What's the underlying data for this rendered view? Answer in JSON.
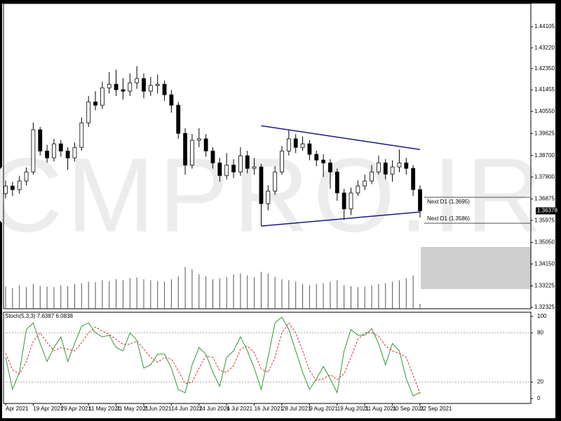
{
  "chart_data": {
    "type": "candlestick",
    "watermark": "CMPRO.IR",
    "ylim": [
      1.3227,
      1.4508
    ],
    "yticks": [
      {
        "value": 1.44105,
        "label": "1.44105"
      },
      {
        "value": 1.4322,
        "label": "1.43220"
      },
      {
        "value": 1.4235,
        "label": "1.42350"
      },
      {
        "value": 1.41455,
        "label": "1.41455"
      },
      {
        "value": 1.4055,
        "label": "1.40550"
      },
      {
        "value": 1.39625,
        "label": "1.39625"
      },
      {
        "value": 1.387,
        "label": "1.38700"
      },
      {
        "value": 1.378,
        "label": "1.37800"
      },
      {
        "value": 1.36875,
        "label": "1.36875"
      },
      {
        "value": 1.35975,
        "label": "1.35975"
      },
      {
        "value": 1.3505,
        "label": "1.35050"
      },
      {
        "value": 1.3415,
        "label": "1.34150"
      },
      {
        "value": 1.33225,
        "label": "1.33225"
      },
      {
        "value": 1.32325,
        "label": "1.32325"
      }
    ],
    "current_price": 1.36378,
    "categories": [
      "Apr 2021",
      null,
      null,
      null,
      "19 Apr 2021",
      null,
      null,
      null,
      "29 Apr 2021",
      null,
      null,
      null,
      "11 May 2021",
      null,
      null,
      null,
      "21 May 2021",
      null,
      null,
      null,
      "2 Jun 2021",
      null,
      null,
      null,
      "14 Jun 2021",
      null,
      null,
      null,
      "24 Jun 2021",
      null,
      null,
      null,
      "6 Jul 2021",
      null,
      null,
      null,
      "16 Jul 2021",
      null,
      null,
      null,
      "28 Jul 2021",
      null,
      null,
      null,
      "9 Aug 2021",
      null,
      null,
      null,
      "19 Aug 2021",
      null,
      null,
      null,
      "31 Aug 2021",
      null,
      null,
      null,
      "10 Sep 2021",
      null,
      null,
      null,
      "22 Sep 2021"
    ],
    "ohlc": [
      [
        1.371,
        1.3765,
        1.369,
        1.3742
      ],
      [
        1.3742,
        1.376,
        1.37,
        1.3727
      ],
      [
        1.3727,
        1.3785,
        1.371,
        1.3763
      ],
      [
        1.3763,
        1.382,
        1.3745,
        1.3801
      ],
      [
        1.3801,
        1.4008,
        1.379,
        1.3978
      ],
      [
        1.3978,
        1.399,
        1.387,
        1.3889
      ],
      [
        1.3889,
        1.3915,
        1.384,
        1.386
      ],
      [
        1.386,
        1.394,
        1.3845,
        1.3919
      ],
      [
        1.3919,
        1.3935,
        1.3865,
        1.3889
      ],
      [
        1.3889,
        1.3905,
        1.381,
        1.386
      ],
      [
        1.386,
        1.3925,
        1.3845,
        1.3904
      ],
      [
        1.3904,
        1.403,
        1.389,
        1.4007
      ],
      [
        1.4007,
        1.412,
        1.399,
        1.4095
      ],
      [
        1.4095,
        1.414,
        1.406,
        1.4081
      ],
      [
        1.4081,
        1.418,
        1.4065,
        1.4154
      ],
      [
        1.4154,
        1.422,
        1.413,
        1.4169
      ],
      [
        1.4169,
        1.423,
        1.412,
        1.4146
      ],
      [
        1.4146,
        1.4195,
        1.4105,
        1.414
      ],
      [
        1.414,
        1.4215,
        1.412,
        1.4175
      ],
      [
        1.4175,
        1.4245,
        1.415,
        1.4193
      ],
      [
        1.4193,
        1.4215,
        1.411,
        1.414
      ],
      [
        1.414,
        1.42,
        1.412,
        1.4164
      ],
      [
        1.4164,
        1.421,
        1.413,
        1.4169
      ],
      [
        1.4169,
        1.4185,
        1.41,
        1.4125
      ],
      [
        1.4125,
        1.4145,
        1.405,
        1.4081
      ],
      [
        1.4081,
        1.4095,
        1.394,
        1.3963
      ],
      [
        1.3963,
        1.3985,
        1.379,
        1.383
      ],
      [
        1.383,
        1.396,
        1.3815,
        1.3934
      ],
      [
        1.3934,
        1.3985,
        1.3905,
        1.394
      ],
      [
        1.394,
        1.396,
        1.3865,
        1.3889
      ],
      [
        1.3889,
        1.3905,
        1.3815,
        1.3839
      ],
      [
        1.3839,
        1.386,
        1.376,
        1.3786
      ],
      [
        1.3786,
        1.388,
        1.377,
        1.383
      ],
      [
        1.383,
        1.3855,
        1.3775,
        1.3801
      ],
      [
        1.3801,
        1.3905,
        1.3785,
        1.3869
      ],
      [
        1.3869,
        1.389,
        1.3795,
        1.3816
      ],
      [
        1.3816,
        1.386,
        1.379,
        1.3822
      ],
      [
        1.3822,
        1.3835,
        1.3575,
        1.3668
      ],
      [
        1.3668,
        1.3745,
        1.364,
        1.3721
      ],
      [
        1.3721,
        1.3825,
        1.3705,
        1.3801
      ],
      [
        1.3801,
        1.391,
        1.379,
        1.3889
      ],
      [
        1.3889,
        1.3975,
        1.387,
        1.394
      ],
      [
        1.394,
        1.396,
        1.388,
        1.3904
      ],
      [
        1.3904,
        1.395,
        1.389,
        1.3919
      ],
      [
        1.3919,
        1.3935,
        1.385,
        1.3875
      ],
      [
        1.3875,
        1.389,
        1.3825,
        1.3851
      ],
      [
        1.3851,
        1.3875,
        1.378,
        1.3839
      ],
      [
        1.3839,
        1.3855,
        1.373,
        1.3801
      ],
      [
        1.3801,
        1.3815,
        1.368,
        1.3713
      ],
      [
        1.3713,
        1.373,
        1.36,
        1.3646
      ],
      [
        1.3646,
        1.3735,
        1.362,
        1.3713
      ],
      [
        1.3713,
        1.3765,
        1.37,
        1.3742
      ],
      [
        1.3742,
        1.379,
        1.3725,
        1.3763
      ],
      [
        1.3763,
        1.383,
        1.375,
        1.3801
      ],
      [
        1.3801,
        1.387,
        1.379,
        1.3839
      ],
      [
        1.3839,
        1.3855,
        1.377,
        1.3792
      ],
      [
        1.3792,
        1.385,
        1.376,
        1.3822
      ],
      [
        1.3822,
        1.3895,
        1.38,
        1.3839
      ],
      [
        1.3839,
        1.386,
        1.379,
        1.3816
      ],
      [
        1.3816,
        1.383,
        1.37,
        1.3727
      ],
      [
        1.3727,
        1.3745,
        1.361,
        1.3638
      ]
    ],
    "vlim": [
      0,
      100
    ],
    "volume": [
      45,
      42,
      48,
      44,
      50,
      46,
      45,
      44,
      48,
      46,
      50,
      52,
      55,
      54,
      58,
      56,
      60,
      58,
      62,
      64,
      60,
      58,
      56,
      55,
      60,
      66,
      85,
      80,
      70,
      66,
      60,
      62,
      65,
      70,
      72,
      68,
      64,
      75,
      72,
      65,
      60,
      58,
      55,
      50,
      48,
      50,
      52,
      55,
      58,
      48,
      46,
      44,
      45,
      48,
      50,
      52,
      55,
      58,
      62,
      68,
      10
    ],
    "trendlines": [
      {
        "x": [
          37,
          60
        ],
        "y": [
          1.3995,
          1.3895
        ],
        "color": "#1a1a80"
      },
      {
        "x": [
          37,
          60
        ],
        "y": [
          1.3574,
          1.3633
        ],
        "color": "#1a1a80"
      }
    ],
    "levels": [
      {
        "label": "Next D1 (1.3695)",
        "value": 1.3695
      },
      {
        "label": "Next D1 (1.3586)",
        "value": 1.3586
      }
    ],
    "stoch": {
      "title": "Stoch(5,3,3) 7.6387 6.0838",
      "ylim": [
        -6,
        105
      ],
      "yticks": [
        100,
        80,
        20,
        0
      ],
      "levels": [
        80,
        20
      ],
      "series": [
        {
          "name": "Main",
          "color": "#2e9a2e",
          "dash": false,
          "values": [
            50,
            11,
            32,
            84,
            92,
            67,
            45,
            62,
            75,
            45,
            67,
            88,
            92,
            80,
            75,
            77,
            62,
            58,
            80,
            71,
            37,
            41,
            54,
            54,
            37,
            11,
            7,
            41,
            62,
            54,
            32,
            15,
            50,
            58,
            75,
            58,
            37,
            11,
            50,
            92,
            99,
            84,
            58,
            32,
            11,
            24,
            39,
            24,
            7,
            58,
            84,
            77,
            77,
            85,
            67,
            41,
            67,
            58,
            24,
            3,
            7.6387
          ]
        },
        {
          "name": "Signal",
          "color": "#e03030",
          "dash": true,
          "values": [
            55,
            35,
            30,
            45,
            70,
            80,
            68,
            58,
            62,
            60,
            58,
            68,
            80,
            87,
            82,
            78,
            72,
            66,
            66,
            70,
            60,
            50,
            44,
            50,
            48,
            34,
            18,
            20,
            37,
            52,
            50,
            34,
            32,
            40,
            60,
            64,
            56,
            36,
            32,
            50,
            80,
            92,
            80,
            58,
            34,
            22,
            24,
            29,
            23,
            30,
            50,
            72,
            80,
            80,
            76,
            64,
            58,
            55,
            50,
            28,
            6.0838
          ]
        }
      ]
    }
  }
}
